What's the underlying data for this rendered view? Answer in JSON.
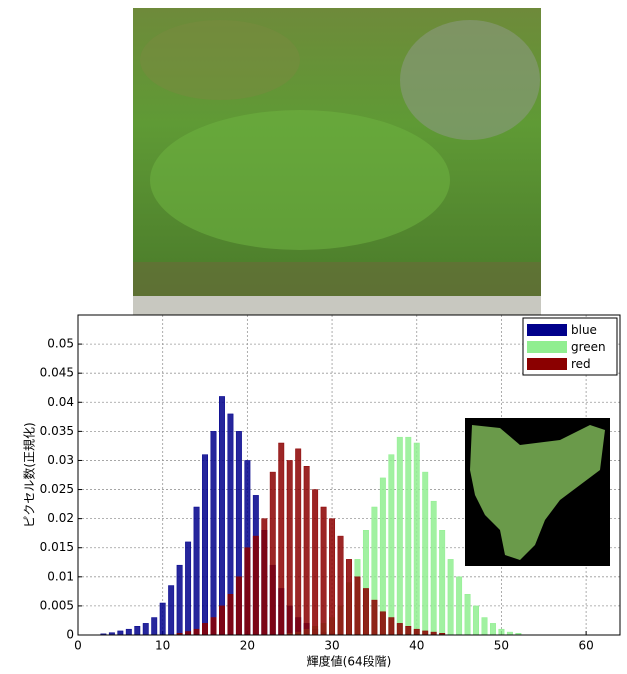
{
  "chart_data": {
    "type": "bar",
    "xlabel": "輝度値(64段階)",
    "ylabel": "ピクセル数(正規化)",
    "xlim": [
      0,
      64
    ],
    "ylim": [
      0,
      0.055
    ],
    "xticks": [
      0,
      10,
      20,
      30,
      40,
      50,
      60
    ],
    "yticks": [
      0,
      0.005,
      0.01,
      0.015,
      0.02,
      0.025,
      0.03,
      0.035,
      0.04,
      0.045,
      0.05
    ],
    "grid": true,
    "legend": "upper right",
    "series": [
      {
        "name": "blue",
        "color": "#00008b",
        "x": [
          3,
          4,
          5,
          6,
          7,
          8,
          9,
          10,
          11,
          12,
          13,
          14,
          15,
          16,
          17,
          18,
          19,
          20,
          21,
          22,
          23,
          24,
          25,
          26,
          27,
          28,
          29,
          30
        ],
        "values": [
          0.0002,
          0.0004,
          0.0007,
          0.001,
          0.0015,
          0.002,
          0.003,
          0.0055,
          0.0085,
          0.012,
          0.016,
          0.022,
          0.031,
          0.035,
          0.041,
          0.038,
          0.035,
          0.03,
          0.024,
          0.018,
          0.012,
          0.008,
          0.005,
          0.003,
          0.002,
          0.001,
          0.0005,
          0.0003
        ]
      },
      {
        "name": "green",
        "color": "#90ee90",
        "x": [
          25,
          26,
          27,
          28,
          29,
          30,
          31,
          32,
          33,
          34,
          35,
          36,
          37,
          38,
          39,
          40,
          41,
          42,
          43,
          44,
          45,
          46,
          47,
          48,
          49,
          50,
          51,
          52
        ],
        "values": [
          0.0003,
          0.0005,
          0.001,
          0.0015,
          0.002,
          0.003,
          0.005,
          0.009,
          0.013,
          0.018,
          0.022,
          0.027,
          0.031,
          0.034,
          0.034,
          0.033,
          0.028,
          0.023,
          0.018,
          0.013,
          0.01,
          0.007,
          0.005,
          0.003,
          0.002,
          0.001,
          0.0005,
          0.0003
        ]
      },
      {
        "name": "red",
        "color": "#8b0000",
        "x": [
          12,
          13,
          14,
          15,
          16,
          17,
          18,
          19,
          20,
          21,
          22,
          23,
          24,
          25,
          26,
          27,
          28,
          29,
          30,
          31,
          32,
          33,
          34,
          35,
          36,
          37,
          38,
          39,
          40,
          41,
          42,
          43
        ],
        "values": [
          0.0003,
          0.0006,
          0.001,
          0.002,
          0.003,
          0.005,
          0.007,
          0.01,
          0.015,
          0.017,
          0.02,
          0.028,
          0.033,
          0.03,
          0.032,
          0.029,
          0.025,
          0.022,
          0.02,
          0.017,
          0.013,
          0.01,
          0.008,
          0.006,
          0.004,
          0.003,
          0.002,
          0.0015,
          0.001,
          0.0007,
          0.0005,
          0.0003
        ]
      }
    ]
  }
}
